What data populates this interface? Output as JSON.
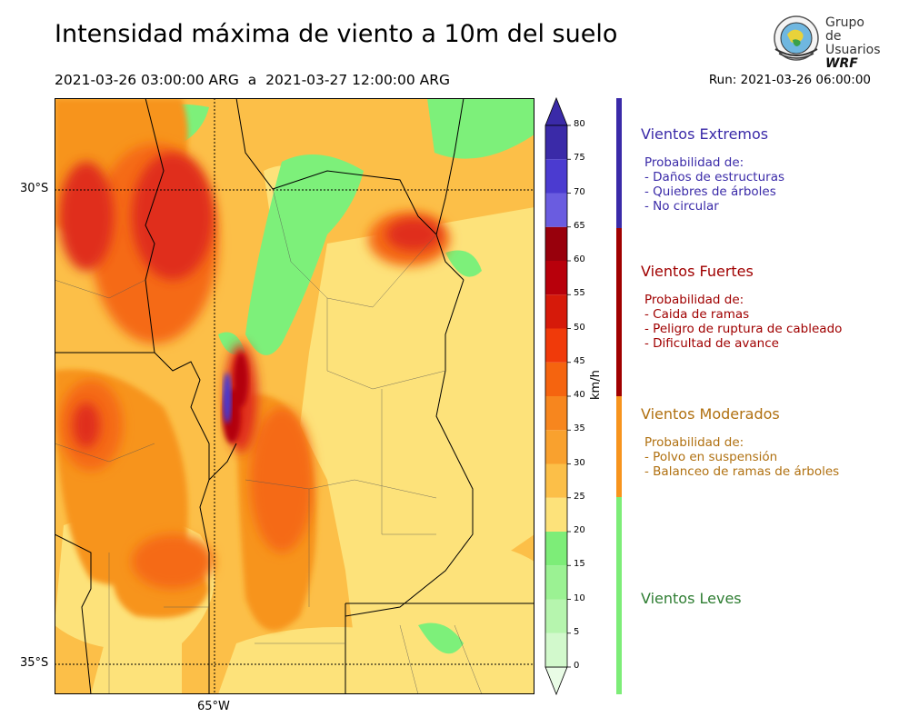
{
  "title": "Intensidad máxima de viento a 10m del suelo",
  "period": "2021-03-26 03:00:00 ARG  a  2021-03-27 12:00:00 ARG",
  "run": "Run: 2021-03-26 06:00:00",
  "logo": {
    "line1": "Grupo de",
    "line2": "Usuarios",
    "line3": "WRF"
  },
  "map": {
    "lat_labels": [
      "30°S",
      "35°S"
    ],
    "lon_labels": [
      "65°W"
    ],
    "colors": {
      "wind_25_30": "#fde27a",
      "wind_30_35": "#fcbf48",
      "wind_35_40": "#f7941d",
      "wind_40_45": "#f56a12",
      "wind_45_55": "#e02d1a",
      "wind_55_65": "#b3000a",
      "wind_65_plus": "#4a3bd0",
      "light_green": "#7df07a"
    }
  },
  "colorbar": {
    "units": "km/h",
    "ticks": [
      "0",
      "5",
      "10",
      "15",
      "20",
      "25",
      "30",
      "35",
      "40",
      "45",
      "50",
      "55",
      "60",
      "65",
      "70",
      "75",
      "80"
    ],
    "colors": [
      "#e9fce6",
      "#d2f9cc",
      "#b6f5ae",
      "#9bf293",
      "#7ded78",
      "#fde27a",
      "#fcbf48",
      "#f9a12e",
      "#f7861e",
      "#f5640f",
      "#f03a0a",
      "#d61a0a",
      "#b8000b",
      "#98000c",
      "#6a5ce0",
      "#4b3bd0",
      "#3a2aa8"
    ]
  },
  "categories": [
    {
      "title": "Vientos Extremos",
      "color": "#3a2aa8",
      "desc": "Probabilidad de:\n- Daños de estructuras\n- Quiebres de árboles\n- No circular"
    },
    {
      "title": "Vientos Fuertes",
      "color": "#a00000",
      "desc": "Probabilidad de:\n- Caida de ramas\n- Peligro de ruptura de cableado\n- Dificultad de avance"
    },
    {
      "title": "Vientos Moderados",
      "color": "#b07010",
      "desc": "Probabilidad de:\n- Polvo en suspensión\n- Balanceo de ramas de árboles"
    },
    {
      "title": "Vientos Leves",
      "color": "#2e7d32",
      "desc": ""
    }
  ]
}
